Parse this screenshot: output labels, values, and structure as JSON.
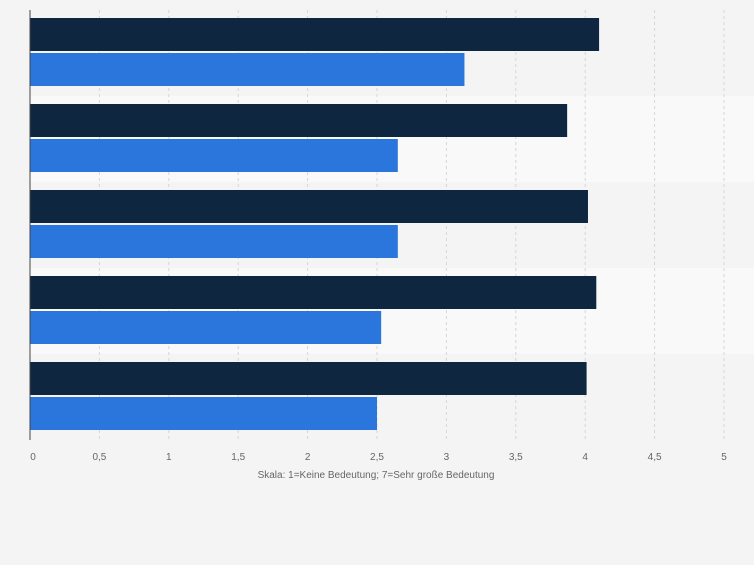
{
  "chart_data": {
    "type": "bar",
    "orientation": "horizontal",
    "categories": [
      "",
      "",
      "",
      "",
      ""
    ],
    "series": [
      {
        "name": "",
        "color": "#0f2640",
        "values": [
          4.1,
          3.87,
          4.02,
          4.08,
          4.01
        ]
      },
      {
        "name": "",
        "color": "#2a76dd",
        "values": [
          3.13,
          2.65,
          2.65,
          2.53,
          2.5
        ]
      }
    ],
    "xlim": [
      0,
      5
    ],
    "xticks": [
      0,
      0.5,
      1,
      1.5,
      2,
      2.5,
      3,
      3.5,
      4,
      4.5,
      5
    ],
    "xtick_labels": [
      "0",
      "0,5",
      "1",
      "1,5",
      "2",
      "2,5",
      "3",
      "3,5",
      "4",
      "4,5",
      "5"
    ],
    "xlabel": "Skala: 1=Keine Bedeutung; 7=Sehr große Bedeutung",
    "ylabel": "",
    "title": "",
    "grid": true,
    "colors": {
      "background": "#f4f4f5",
      "band_alt": "#f9f9fa",
      "grid": "#d6d6d9",
      "axis": "#444444",
      "text": "#666666"
    }
  }
}
